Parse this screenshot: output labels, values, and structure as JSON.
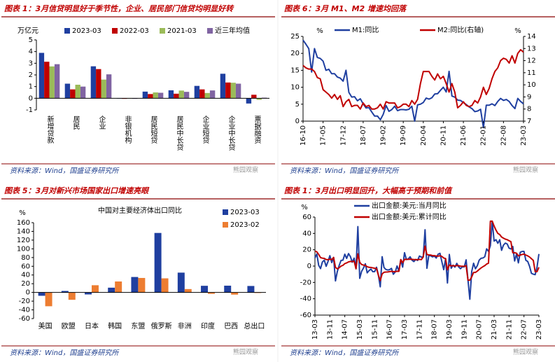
{
  "chart_data": [
    {
      "type": "bar",
      "title": "图表 1：3月信贷明显好于季节性，企业、居民部门信贷均明显好转",
      "y_label": "万亿元",
      "categories": [
        "新增贷款",
        "居民",
        "企业",
        "非银机构",
        "居民短贷",
        "居民中长贷",
        "企业短贷",
        "企业中长贷",
        "票据融资"
      ],
      "series": [
        {
          "name": "2023-03",
          "color": "#1f3fa0",
          "values": [
            3.89,
            1.25,
            2.74,
            -0.03,
            0.57,
            0.68,
            1.06,
            2.1,
            -0.45
          ]
        },
        {
          "name": "2022-03",
          "color": "#c00000",
          "values": [
            3.13,
            0.76,
            2.5,
            -0.05,
            0.36,
            0.39,
            0.76,
            1.35,
            0.3
          ]
        },
        {
          "name": "2021-03",
          "color": "#9bbb59",
          "values": [
            2.73,
            1.16,
            1.6,
            -0.03,
            0.5,
            0.66,
            0.45,
            1.33,
            -0.13
          ]
        },
        {
          "name": "近三年均值",
          "color": "#8064a2",
          "values": [
            2.92,
            1.0,
            2.05,
            -0.05,
            0.47,
            0.55,
            0.67,
            1.25,
            0.05
          ]
        }
      ],
      "ylim": [
        -1,
        5
      ],
      "yticks": [
        -1,
        0,
        1,
        2,
        3,
        4,
        5
      ],
      "source": "资料来源：Wind，国盛证券研究所",
      "watermark": "熊园观察"
    },
    {
      "type": "line",
      "title": "图表 6：3月 M1、M2 增速均回落",
      "y_label": "%",
      "y2_label": "%",
      "categories": [
        "16-10",
        null,
        null,
        null,
        null,
        null,
        null,
        "17-05",
        null,
        null,
        null,
        null,
        null,
        null,
        "17-12",
        null,
        null,
        null,
        null,
        null,
        null,
        "18-07",
        null,
        null,
        null,
        null,
        null,
        null,
        "19-02",
        null,
        null,
        null,
        null,
        null,
        null,
        "19-09",
        null,
        null,
        null,
        null,
        null,
        null,
        "20-04",
        null,
        null,
        null,
        null,
        null,
        null,
        "20-11",
        null,
        null,
        null,
        null,
        null,
        null,
        "21-06",
        null,
        null,
        null,
        null,
        null,
        null,
        "22-01",
        null,
        null,
        null,
        null,
        null,
        null,
        "22-08",
        null,
        null,
        null,
        null,
        null,
        null,
        "23-03"
      ],
      "series": [
        {
          "name": "M1:同比",
          "color": "#1f3fa0",
          "values": [
            23.9,
            22.7,
            21.4,
            14.5,
            21.4,
            18.8,
            18.5,
            17.7,
            15.0,
            15.3,
            14.0,
            14.0,
            13.0,
            12.7,
            11.8,
            15.0,
            8.5,
            7.1,
            7.2,
            6.0,
            6.6,
            5.1,
            3.9,
            4.0,
            2.7,
            1.5,
            1.5,
            0.4,
            2.0,
            4.6,
            2.9,
            3.4,
            4.4,
            3.1,
            3.4,
            3.4,
            3.3,
            3.5,
            4.4,
            0.0,
            4.8,
            5.0,
            5.5,
            6.8,
            6.5,
            6.9,
            8.0,
            8.1,
            9.1,
            10.0,
            8.6,
            14.7,
            7.4,
            7.1,
            6.2,
            6.1,
            5.5,
            4.9,
            4.2,
            3.7,
            2.8,
            3.0,
            3.5,
            -1.9,
            4.7,
            4.7,
            5.1,
            4.6,
            5.8,
            6.7,
            6.1,
            6.4,
            5.8,
            4.6,
            3.7,
            6.7,
            5.8,
            5.1
          ]
        },
        {
          "name": "M2:同比(右轴)",
          "color": "#c00000",
          "axis": "y2",
          "values": [
            11.6,
            11.4,
            11.3,
            11.3,
            11.1,
            10.6,
            10.5,
            9.6,
            9.4,
            9.2,
            8.9,
            9.2,
            8.8,
            9.1,
            8.2,
            8.6,
            8.8,
            8.2,
            8.3,
            8.3,
            8.0,
            8.5,
            8.2,
            8.3,
            8.0,
            8.0,
            8.1,
            8.4,
            8.0,
            8.6,
            8.5,
            8.5,
            8.5,
            8.1,
            8.2,
            8.4,
            8.4,
            8.2,
            8.7,
            8.4,
            8.8,
            10.1,
            11.1,
            11.1,
            11.1,
            10.7,
            10.4,
            10.9,
            10.5,
            10.7,
            10.1,
            9.4,
            10.1,
            9.4,
            8.1,
            8.3,
            8.6,
            8.3,
            8.2,
            8.3,
            8.7,
            8.5,
            9.0,
            9.8,
            9.2,
            9.7,
            10.5,
            11.1,
            11.4,
            12.0,
            12.2,
            12.1,
            11.8,
            12.4,
            11.8,
            12.6,
            12.9,
            12.7
          ]
        }
      ],
      "ylim": [
        0,
        25
      ],
      "yticks": [
        0,
        5,
        10,
        15,
        20,
        25
      ],
      "y2lim": [
        7,
        14
      ],
      "y2ticks": [
        7,
        8,
        9,
        10,
        11,
        12,
        13,
        14
      ],
      "source": "资料来源：Wind，国盛证券研究所",
      "watermark": "熊园观察"
    },
    {
      "type": "bar",
      "title": "图表 5：3月对新兴市场国家出口增速亮眼",
      "subtitle": "中国对主要经济体出口同比",
      "y_label": "%",
      "categories": [
        "美国",
        "欧盟",
        "日本",
        "韩国",
        "东盟",
        "俄罗斯",
        "非洲",
        "印度",
        "巴西",
        "总出口"
      ],
      "series": [
        {
          "name": "2023-03",
          "color": "#1f3fa0",
          "values": [
            -7.7,
            3.4,
            -4.6,
            10.9,
            35.4,
            136.4,
            45.4,
            15.2,
            15.5,
            14.8
          ]
        },
        {
          "name": "2023-02",
          "color": "#ed7d31",
          "values": [
            -31.7,
            -16.9,
            16.5,
            25.1,
            33.2,
            32.3,
            7.7,
            -3.2,
            -5.0,
            -1.3
          ]
        }
      ],
      "ylim": [
        -60,
        160
      ],
      "yticks": [
        -60,
        -40,
        -20,
        0,
        20,
        40,
        60,
        80,
        100,
        120,
        140,
        160
      ],
      "source": "资料来源：Wind，国盛证券研究所",
      "watermark": "熊园观察"
    },
    {
      "type": "line",
      "title": "图表 1：3月出口明显回升，大幅高于预期和前值",
      "y_label": "%",
      "categories": [
        "13-03",
        null,
        null,
        null,
        null,
        null,
        null,
        null,
        "13-11",
        null,
        null,
        null,
        null,
        null,
        null,
        null,
        "14-07",
        null,
        null,
        null,
        null,
        null,
        null,
        null,
        "15-03",
        null,
        null,
        null,
        null,
        null,
        null,
        null,
        "15-11",
        null,
        null,
        null,
        null,
        null,
        null,
        null,
        "16-07",
        null,
        null,
        null,
        null,
        null,
        null,
        null,
        "17-03",
        null,
        null,
        null,
        null,
        null,
        null,
        null,
        "17-11",
        null,
        null,
        null,
        null,
        null,
        null,
        null,
        "18-07",
        null,
        null,
        null,
        null,
        null,
        null,
        null,
        "19-03",
        null,
        null,
        null,
        null,
        null,
        null,
        null,
        "19-11",
        null,
        null,
        null,
        null,
        null,
        null,
        null,
        "20-07",
        null,
        null,
        null,
        null,
        null,
        null,
        null,
        "21-03",
        null,
        null,
        null,
        null,
        null,
        null,
        null,
        "21-11",
        null,
        null,
        null,
        null,
        null,
        null,
        null,
        "22-07",
        null,
        null,
        null,
        null,
        null,
        null,
        null,
        "23-03"
      ],
      "series": [
        {
          "name": "出口金额:美元:当月同比",
          "color": "#1f3fa0",
          "values": [
            10.0,
            14.7,
            1.0,
            -3.1,
            5.1,
            7.2,
            -0.3,
            5.6,
            12.7,
            4.3,
            10.6,
            -18.1,
            -6.6,
            0.9,
            7.0,
            7.2,
            14.5,
            9.4,
            15.3,
            11.6,
            4.7,
            9.7,
            -3.3,
            48.3,
            -15.0,
            -6.4,
            -2.5,
            2.8,
            -8.3,
            -5.5,
            -3.7,
            -6.9,
            -6.8,
            -1.4,
            -11.2,
            -25.4,
            11.5,
            -1.8,
            -4.1,
            -4.8,
            -4.4,
            -2.8,
            -10.0,
            -7.3,
            0.1,
            -6.1,
            7.9,
            -1.3,
            16.4,
            8.0,
            8.7,
            11.3,
            7.2,
            5.5,
            8.1,
            6.9,
            12.3,
            10.9,
            11.1,
            44.5,
            -2.7,
            12.9,
            12.6,
            11.3,
            12.2,
            9.8,
            14.5,
            15.6,
            5.4,
            -4.4,
            9.1,
            -20.7,
            14.2,
            -2.7,
            1.1,
            -1.3,
            3.3,
            -1.0,
            -3.2,
            -0.9,
            -1.1,
            7.6,
            -17.2,
            -40.6,
            -6.6,
            3.5,
            -3.3,
            0.5,
            7.2,
            9.5,
            9.9,
            11.4,
            21.1,
            18.1,
            24.9,
            55,
            30.6,
            32.3,
            27.9,
            32.2,
            19.3,
            25.6,
            28.1,
            27.1,
            22.0,
            20.9,
            24.1,
            6.2,
            14.7,
            3.9,
            16.9,
            17.9,
            18.0,
            7.1,
            5.7,
            -0.3,
            -8.9,
            -9.9,
            -10.5,
            -1.3,
            14.8
          ]
        },
        {
          "name": "出口金额:美元:累计同比",
          "color": "#c00000",
          "values": [
            18.4,
            17.4,
            14.3,
            10.4,
            9.7,
            9.4,
            8.0,
            7.8,
            8.4,
            7.9,
            10.6,
            -1.6,
            -3.4,
            -2.0,
            0.0,
            0.9,
            3.0,
            3.9,
            5.1,
            5.7,
            5.6,
            6.0,
            -3.3,
            15.0,
            4.7,
            1.9,
            1.2,
            0.9,
            -0.8,
            -1.5,
            -1.7,
            -2.2,
            -2.7,
            -2.9,
            -11.2,
            -17.8,
            -9.6,
            -7.6,
            -7.3,
            -7.2,
            -6.8,
            -6.4,
            -6.8,
            -6.9,
            -6.3,
            -6.4,
            7.9,
            4.0,
            8.2,
            8.1,
            8.2,
            8.5,
            8.3,
            7.9,
            7.9,
            7.8,
            8.2,
            7.9,
            11.1,
            24.4,
            14.1,
            13.7,
            13.5,
            12.8,
            12.8,
            12.2,
            12.2,
            12.6,
            11.8,
            9.9,
            9.1,
            -4.6,
            1.4,
            0.2,
            0.5,
            0.1,
            0.6,
            0.4,
            -0.1,
            -0.2,
            -0.3,
            0.5,
            -17.2,
            -17.2,
            -13.3,
            -7.7,
            -7.8,
            -6.2,
            -4.1,
            -2.3,
            -0.8,
            0.5,
            2.5,
            3.6,
            55,
            55,
            49,
            44,
            40,
            38.6,
            35.6,
            34.2,
            33.0,
            32.3,
            31.1,
            29.9,
            16.3,
            16.3,
            15.8,
            12.5,
            13.5,
            14.2,
            14.6,
            13.5,
            12.5,
            11.1,
            9.0,
            7.0,
            -6.8,
            -6.8,
            -1.5
          ]
        }
      ],
      "ylim": [
        -60,
        60
      ],
      "yticks": [
        -60,
        -40,
        -20,
        0,
        20,
        40,
        60
      ],
      "source": "资料来源：Wind，国盛证券研究所",
      "watermark": "熊园观察"
    }
  ]
}
